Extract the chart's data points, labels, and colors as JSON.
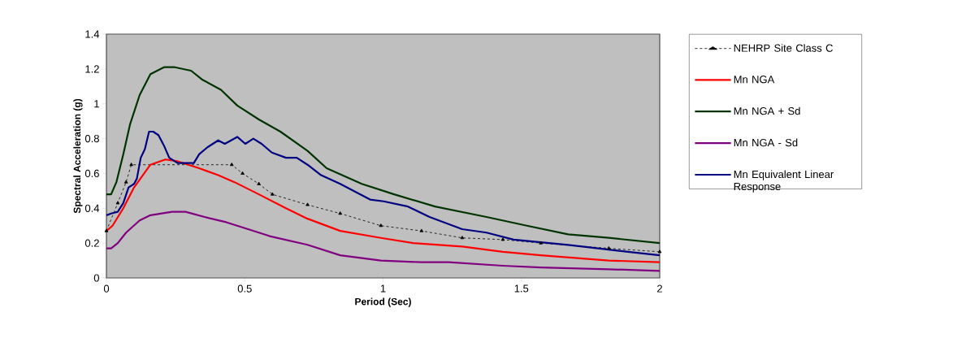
{
  "chart_data": {
    "type": "line",
    "xlabel": "Period (Sec)",
    "ylabel": "Spectral Acceleration (g)",
    "xlim": [
      0,
      2
    ],
    "ylim": [
      0,
      1.4
    ],
    "xticks": [
      0,
      0.5,
      1,
      1.5,
      2
    ],
    "yticks": [
      0,
      0.2,
      0.4,
      0.6,
      0.8,
      1,
      1.2,
      1.4
    ],
    "grid": false,
    "legend": "right",
    "series": [
      {
        "name": "NEHRP Site Class C",
        "color": "#000000",
        "marker": "triangle",
        "line_style": "dashed",
        "x": [
          0,
          0.041,
          0.071,
          0.09,
          0.453,
          0.492,
          0.551,
          0.6,
          0.727,
          0.845,
          0.992,
          1.139,
          1.286,
          1.433,
          1.57,
          1.816,
          2.0
        ],
        "values": [
          0.27,
          0.43,
          0.55,
          0.65,
          0.65,
          0.6,
          0.54,
          0.48,
          0.42,
          0.37,
          0.3,
          0.27,
          0.23,
          0.22,
          0.2,
          0.17,
          0.15
        ]
      },
      {
        "name": "Mn NGA",
        "color": "#ff0000",
        "x": [
          0,
          0.022,
          0.061,
          0.1,
          0.159,
          0.213,
          0.257,
          0.335,
          0.404,
          0.463,
          0.551,
          0.649,
          0.727,
          0.845,
          0.992,
          1.109,
          1.286,
          1.433,
          1.57,
          1.816,
          2.0
        ],
        "values": [
          0.27,
          0.3,
          0.4,
          0.52,
          0.65,
          0.68,
          0.67,
          0.63,
          0.59,
          0.55,
          0.48,
          0.4,
          0.34,
          0.27,
          0.23,
          0.2,
          0.18,
          0.15,
          0.13,
          0.1,
          0.09
        ]
      },
      {
        "name": "Mn NGA + Sd",
        "color": "#003300",
        "x": [
          0,
          0.017,
          0.036,
          0.061,
          0.085,
          0.12,
          0.159,
          0.208,
          0.247,
          0.306,
          0.345,
          0.414,
          0.473,
          0.551,
          0.629,
          0.727,
          0.796,
          0.923,
          1.04,
          1.188,
          1.374,
          1.52,
          1.669,
          1.816,
          2.0
        ],
        "values": [
          0.48,
          0.48,
          0.55,
          0.71,
          0.88,
          1.05,
          1.17,
          1.21,
          1.21,
          1.19,
          1.14,
          1.08,
          0.99,
          0.91,
          0.84,
          0.73,
          0.63,
          0.54,
          0.48,
          0.41,
          0.35,
          0.3,
          0.25,
          0.23,
          0.2
        ]
      },
      {
        "name": "Mn NGA - Sd",
        "color": "#800080",
        "x": [
          0,
          0.017,
          0.041,
          0.071,
          0.12,
          0.159,
          0.237,
          0.286,
          0.355,
          0.433,
          0.512,
          0.59,
          0.727,
          0.845,
          0.992,
          1.139,
          1.237,
          1.433,
          1.57,
          1.816,
          2.0
        ],
        "values": [
          0.17,
          0.17,
          0.2,
          0.26,
          0.33,
          0.36,
          0.38,
          0.38,
          0.35,
          0.32,
          0.28,
          0.24,
          0.19,
          0.13,
          0.1,
          0.09,
          0.09,
          0.07,
          0.06,
          0.05,
          0.04
        ]
      },
      {
        "name": "Mn Equivalent Linear Response",
        "color": "#000080",
        "x": [
          0,
          0.017,
          0.041,
          0.061,
          0.08,
          0.1,
          0.11,
          0.124,
          0.139,
          0.154,
          0.169,
          0.188,
          0.208,
          0.227,
          0.257,
          0.316,
          0.335,
          0.365,
          0.404,
          0.428,
          0.473,
          0.502,
          0.531,
          0.561,
          0.598,
          0.649,
          0.688,
          0.727,
          0.776,
          0.845,
          0.953,
          1.002,
          1.09,
          1.168,
          1.286,
          1.374,
          1.472,
          1.669,
          1.885,
          2.0
        ],
        "values": [
          0.36,
          0.37,
          0.38,
          0.43,
          0.52,
          0.54,
          0.57,
          0.69,
          0.74,
          0.84,
          0.84,
          0.82,
          0.76,
          0.69,
          0.66,
          0.66,
          0.71,
          0.75,
          0.79,
          0.77,
          0.81,
          0.77,
          0.8,
          0.77,
          0.72,
          0.69,
          0.69,
          0.65,
          0.59,
          0.54,
          0.45,
          0.44,
          0.41,
          0.35,
          0.28,
          0.26,
          0.22,
          0.19,
          0.15,
          0.13
        ]
      }
    ]
  }
}
